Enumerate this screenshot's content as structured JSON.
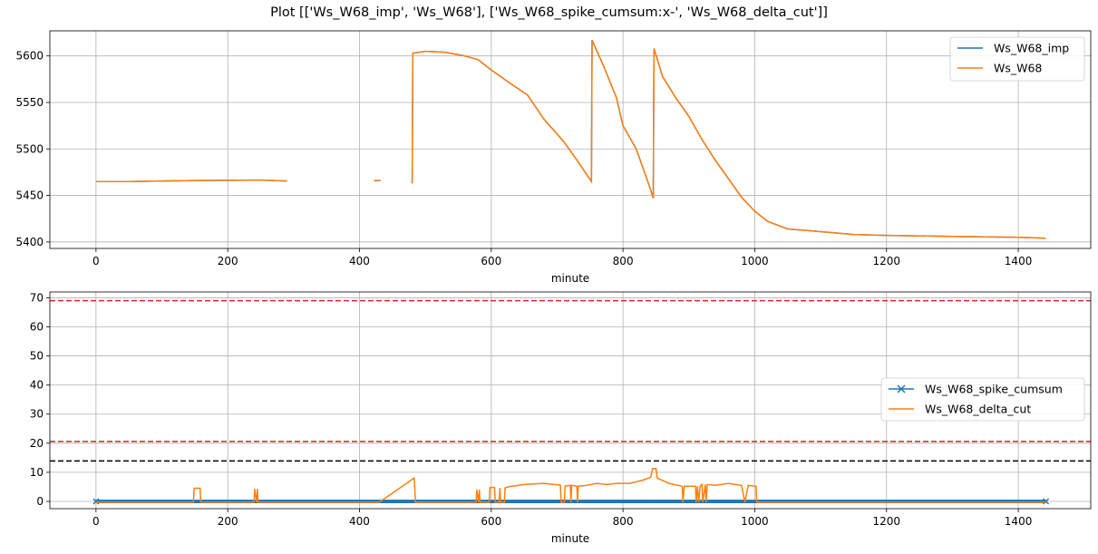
{
  "title": "Plot [['Ws_W68_imp', 'Ws_W68'], ['Ws_W68_spike_cumsum:x-', 'Ws_W68_delta_cut']]",
  "chart_data": [
    {
      "type": "line",
      "xlabel": "minute",
      "ylabel": "",
      "xlim": [
        -70,
        1510
      ],
      "ylim": [
        5393,
        5627
      ],
      "xticks": [
        0,
        200,
        400,
        600,
        800,
        1000,
        1200,
        1400
      ],
      "yticks": [
        5400,
        5450,
        5500,
        5550,
        5600
      ],
      "grid": true,
      "legend_position": "top-right",
      "series": [
        {
          "name": "Ws_W68_imp",
          "color": "#1f77b4",
          "segments": [
            [
              [
                0,
                5465
              ],
              [
                50,
                5465
              ],
              [
                100,
                5465.5
              ],
              [
                150,
                5466
              ],
              [
                200,
                5466.2
              ],
              [
                250,
                5466.5
              ],
              [
                290,
                5465.5
              ]
            ],
            [
              [
                422,
                5466
              ],
              [
                432,
                5466
              ]
            ],
            [
              [
                480,
                5463
              ],
              [
                481,
                5603
              ],
              [
                500,
                5605
              ],
              [
                530,
                5604
              ],
              [
                560,
                5600
              ],
              [
                580,
                5596
              ],
              [
                600,
                5585
              ],
              [
                630,
                5570
              ],
              [
                655,
                5558
              ],
              [
                680,
                5532
              ],
              [
                710,
                5508
              ],
              [
                730,
                5488
              ],
              [
                752,
                5465
              ],
              [
                753,
                5617
              ],
              [
                770,
                5590
              ],
              [
                790,
                5555
              ],
              [
                800,
                5525
              ],
              [
                820,
                5500
              ],
              [
                840,
                5460
              ],
              [
                846,
                5447
              ],
              [
                847,
                5608
              ],
              [
                860,
                5578
              ],
              [
                880,
                5555
              ],
              [
                900,
                5535
              ],
              [
                920,
                5510
              ],
              [
                940,
                5488
              ],
              [
                960,
                5468
              ],
              [
                980,
                5448
              ],
              [
                1000,
                5433
              ],
              [
                1020,
                5422
              ],
              [
                1050,
                5414
              ],
              [
                1100,
                5411
              ],
              [
                1150,
                5408
              ],
              [
                1200,
                5407
              ],
              [
                1300,
                5406
              ],
              [
                1400,
                5405
              ],
              [
                1442,
                5404
              ]
            ]
          ]
        },
        {
          "name": "Ws_W68",
          "color": "#ff7f0e",
          "segments": [
            [
              [
                0,
                5465
              ],
              [
                50,
                5465
              ],
              [
                100,
                5465.5
              ],
              [
                150,
                5466
              ],
              [
                200,
                5466.2
              ],
              [
                250,
                5466.5
              ],
              [
                290,
                5465.5
              ]
            ],
            [
              [
                422,
                5466
              ],
              [
                432,
                5466
              ]
            ],
            [
              [
                480,
                5463
              ],
              [
                481,
                5603
              ],
              [
                500,
                5605
              ],
              [
                530,
                5604
              ],
              [
                560,
                5600
              ],
              [
                580,
                5596
              ],
              [
                600,
                5585
              ],
              [
                630,
                5570
              ],
              [
                655,
                5558
              ],
              [
                680,
                5532
              ],
              [
                710,
                5508
              ],
              [
                730,
                5488
              ],
              [
                752,
                5465
              ],
              [
                753,
                5617
              ],
              [
                770,
                5590
              ],
              [
                790,
                5555
              ],
              [
                800,
                5525
              ],
              [
                820,
                5500
              ],
              [
                840,
                5460
              ],
              [
                846,
                5447
              ],
              [
                847,
                5608
              ],
              [
                860,
                5578
              ],
              [
                880,
                5555
              ],
              [
                900,
                5535
              ],
              [
                920,
                5510
              ],
              [
                940,
                5488
              ],
              [
                960,
                5468
              ],
              [
                980,
                5448
              ],
              [
                1000,
                5433
              ],
              [
                1020,
                5422
              ],
              [
                1050,
                5414
              ],
              [
                1100,
                5411
              ],
              [
                1150,
                5408
              ],
              [
                1200,
                5407
              ],
              [
                1300,
                5406
              ],
              [
                1400,
                5405
              ],
              [
                1442,
                5404
              ]
            ]
          ]
        }
      ]
    },
    {
      "type": "line",
      "xlabel": "minute",
      "ylabel": "",
      "xlim": [
        -70,
        1510
      ],
      "ylim": [
        -2.5,
        72
      ],
      "xticks": [
        0,
        200,
        400,
        600,
        800,
        1000,
        1200,
        1400
      ],
      "yticks": [
        0,
        10,
        20,
        30,
        40,
        50,
        60,
        70
      ],
      "grid": true,
      "legend_position": "center-right",
      "hlines": [
        {
          "y": 69,
          "color": "#d62728",
          "style": "dashed"
        },
        {
          "y": 20.6,
          "color": "#d62728",
          "style": "dashed"
        },
        {
          "y": 13.9,
          "color": "#000000",
          "style": "dashed"
        }
      ],
      "series": [
        {
          "name": "Ws_W68_spike_cumsum",
          "color": "#1f77b4",
          "marker": "x",
          "x_range": [
            0,
            1442
          ],
          "value_low": 0,
          "value_high": 0.6
        },
        {
          "name": "Ws_W68_delta_cut",
          "color": "#ff7f0e",
          "points": [
            [
              0,
              -0.3
            ],
            [
              148,
              -0.3
            ],
            [
              149,
              4.5
            ],
            [
              158,
              4.5
            ],
            [
              159,
              -0.3
            ],
            [
              240,
              -0.3
            ],
            [
              241,
              4.3
            ],
            [
              244,
              -0.3
            ],
            [
              245,
              4.3
            ],
            [
              246,
              -0.3
            ],
            [
              430,
              -0.3
            ],
            [
              483,
              8
            ],
            [
              485,
              -0.3
            ],
            [
              577,
              -0.3
            ],
            [
              578,
              4
            ],
            [
              581,
              -0.3
            ],
            [
              582,
              4
            ],
            [
              583,
              -0.3
            ],
            [
              597,
              -0.3
            ],
            [
              598,
              4.8
            ],
            [
              605,
              4.8
            ],
            [
              606,
              -0.3
            ],
            [
              612,
              -0.3
            ],
            [
              613,
              4.6
            ],
            [
              614,
              -0.3
            ],
            [
              620,
              -0.3
            ],
            [
              621,
              4.6
            ],
            [
              626,
              5
            ],
            [
              650,
              5.8
            ],
            [
              680,
              6.2
            ],
            [
              705,
              5.6
            ],
            [
              706,
              -0.3
            ],
            [
              711,
              -0.3
            ],
            [
              712,
              5.3
            ],
            [
              720,
              5.5
            ],
            [
              721,
              -0.3
            ],
            [
              722,
              5.5
            ],
            [
              730,
              5.2
            ],
            [
              731,
              -0.3
            ],
            [
              732,
              5.2
            ],
            [
              745,
              5.5
            ],
            [
              760,
              6.2
            ],
            [
              775,
              5.8
            ],
            [
              790,
              6.2
            ],
            [
              810,
              6.2
            ],
            [
              830,
              7.3
            ],
            [
              842,
              8.3
            ],
            [
              845,
              11.3
            ],
            [
              850,
              11.3
            ],
            [
              852,
              8
            ],
            [
              870,
              6.2
            ],
            [
              890,
              5.2
            ],
            [
              891,
              -0.3
            ],
            [
              893,
              5.2
            ],
            [
              910,
              5.2
            ],
            [
              911,
              -0.3
            ],
            [
              913,
              5.2
            ],
            [
              915,
              -0.3
            ],
            [
              917,
              5.2
            ],
            [
              920,
              5.8
            ],
            [
              921,
              -0.3
            ],
            [
              925,
              5.8
            ],
            [
              926,
              -0.3
            ],
            [
              928,
              5.8
            ],
            [
              940,
              5.5
            ],
            [
              960,
              6.2
            ],
            [
              980,
              5.5
            ],
            [
              985,
              -0.3
            ],
            [
              990,
              5.5
            ],
            [
              1002,
              5.2
            ],
            [
              1003,
              -0.3
            ],
            [
              1442,
              -0.3
            ]
          ]
        }
      ]
    }
  ]
}
